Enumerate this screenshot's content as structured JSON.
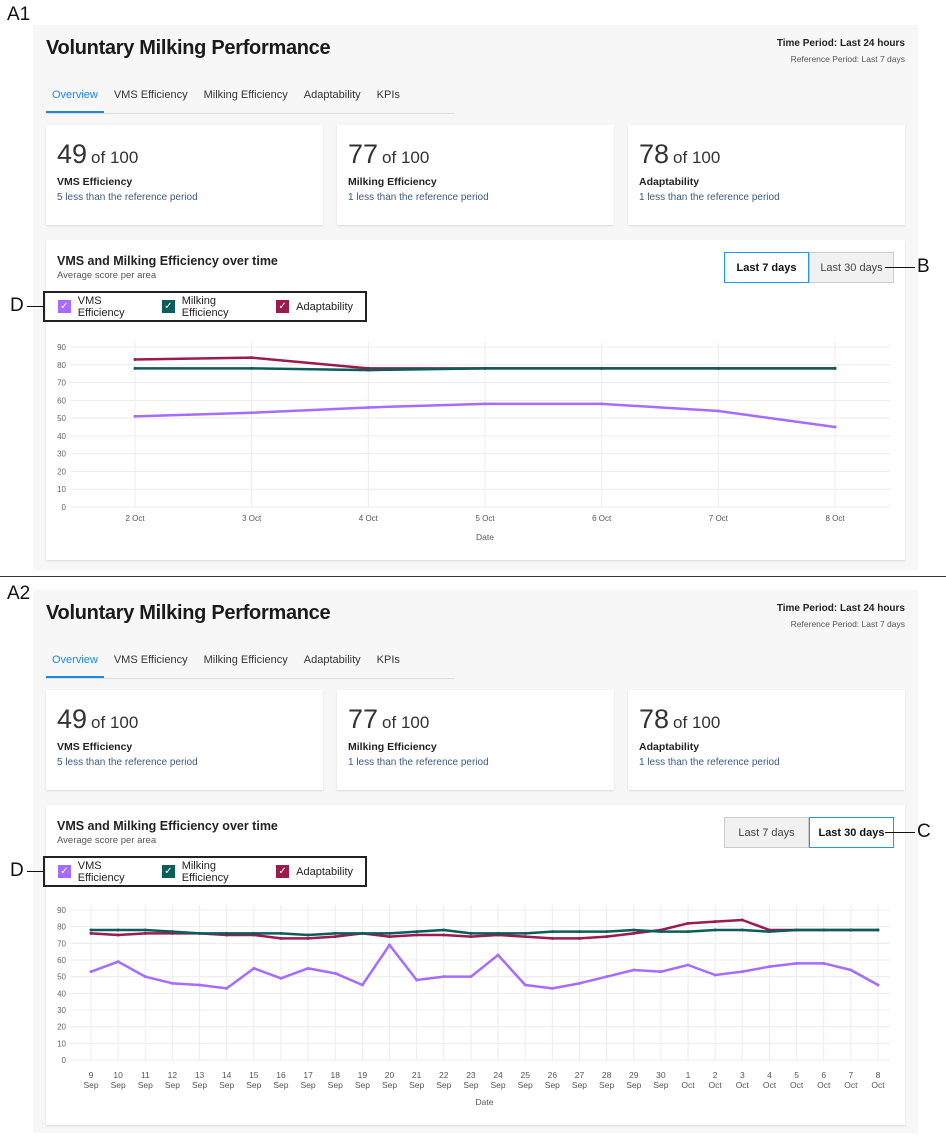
{
  "annotations": {
    "a1": "A1",
    "a2": "A2",
    "b": "B",
    "c": "C",
    "d": "D"
  },
  "panels": [
    {
      "header": {
        "title": "Voluntary Milking Performance",
        "time_period": "Time Period: Last 24 hours",
        "reference_period": "Reference Period: Last 7 days"
      },
      "tabs": [
        {
          "label": "Overview",
          "active": true
        },
        {
          "label": "VMS Efficiency"
        },
        {
          "label": "Milking Efficiency"
        },
        {
          "label": "Adaptability"
        },
        {
          "label": "KPIs"
        }
      ],
      "cards": [
        {
          "score": "49",
          "of": "of 100",
          "metric": "VMS Efficiency",
          "delta": "5 less than the reference period"
        },
        {
          "score": "77",
          "of": "of 100",
          "metric": "Milking Efficiency",
          "delta": "1 less than the reference period"
        },
        {
          "score": "78",
          "of": "of 100",
          "metric": "Adaptability",
          "delta": "1 less than the reference period"
        }
      ],
      "chart": {
        "title": "VMS and Milking Efficiency over time",
        "subtitle": "Average score per area",
        "range_buttons": [
          {
            "label": "Last 7 days",
            "active": true
          },
          {
            "label": "Last 30 days",
            "active": false
          }
        ],
        "legend": [
          {
            "label": "VMS Efficiency",
            "color": "#a66cff"
          },
          {
            "label": "Milking Efficiency",
            "color": "#0b5c5a"
          },
          {
            "label": "Adaptability",
            "color": "#9b1b4e"
          }
        ]
      }
    },
    {
      "header": {
        "title": "Voluntary Milking Performance",
        "time_period": "Time Period: Last 24 hours",
        "reference_period": "Reference Period: Last 7 days"
      },
      "tabs": [
        {
          "label": "Overview",
          "active": true
        },
        {
          "label": "VMS Efficiency"
        },
        {
          "label": "Milking Efficiency"
        },
        {
          "label": "Adaptability"
        },
        {
          "label": "KPIs"
        }
      ],
      "cards": [
        {
          "score": "49",
          "of": "of 100",
          "metric": "VMS Efficiency",
          "delta": "5 less than the reference period"
        },
        {
          "score": "77",
          "of": "of 100",
          "metric": "Milking Efficiency",
          "delta": "1 less than the reference period"
        },
        {
          "score": "78",
          "of": "of 100",
          "metric": "Adaptability",
          "delta": "1 less than the reference period"
        }
      ],
      "chart": {
        "title": "VMS and Milking Efficiency over time",
        "subtitle": "Average score per area",
        "range_buttons": [
          {
            "label": "Last 7 days",
            "active": false
          },
          {
            "label": "Last 30 days",
            "active": true
          }
        ],
        "legend": [
          {
            "label": "VMS Efficiency",
            "color": "#a66cff"
          },
          {
            "label": "Milking Efficiency",
            "color": "#0b5c5a"
          },
          {
            "label": "Adaptability",
            "color": "#9b1b4e"
          }
        ]
      }
    }
  ],
  "chart_data": [
    {
      "type": "line",
      "xlabel": "Date",
      "ylabel": "",
      "ylim": [
        0,
        90
      ],
      "yticks": [
        0,
        10,
        20,
        30,
        40,
        50,
        60,
        70,
        80,
        90
      ],
      "grid": true,
      "legend": "top-left",
      "categories": [
        [
          "2 Oct"
        ],
        [
          "3 Oct"
        ],
        [
          "4 Oct"
        ],
        [
          "5 Oct"
        ],
        [
          "6 Oct"
        ],
        [
          "7 Oct"
        ],
        [
          "8 Oct"
        ]
      ],
      "series": [
        {
          "name": "VMS Efficiency",
          "color": "#a66cff",
          "values": [
            51,
            53,
            56,
            58,
            58,
            54,
            45
          ]
        },
        {
          "name": "Milking Efficiency",
          "color": "#0b5c5a",
          "values": [
            78,
            78,
            77,
            78,
            78,
            78,
            78
          ]
        },
        {
          "name": "Adaptability",
          "color": "#9b1b4e",
          "values": [
            83,
            84,
            78,
            78,
            78,
            78,
            78
          ]
        }
      ]
    },
    {
      "type": "line",
      "xlabel": "Date",
      "ylabel": "",
      "ylim": [
        0,
        90
      ],
      "yticks": [
        0,
        10,
        20,
        30,
        40,
        50,
        60,
        70,
        80,
        90
      ],
      "grid": true,
      "legend": "top-left",
      "categories": [
        [
          "9",
          "Sep"
        ],
        [
          "10",
          "Sep"
        ],
        [
          "11",
          "Sep"
        ],
        [
          "12",
          "Sep"
        ],
        [
          "13",
          "Sep"
        ],
        [
          "14",
          "Sep"
        ],
        [
          "15",
          "Sep"
        ],
        [
          "16",
          "Sep"
        ],
        [
          "17",
          "Sep"
        ],
        [
          "18",
          "Sep"
        ],
        [
          "19",
          "Sep"
        ],
        [
          "20",
          "Sep"
        ],
        [
          "21",
          "Sep"
        ],
        [
          "22",
          "Sep"
        ],
        [
          "23",
          "Sep"
        ],
        [
          "24",
          "Sep"
        ],
        [
          "25",
          "Sep"
        ],
        [
          "26",
          "Sep"
        ],
        [
          "27",
          "Sep"
        ],
        [
          "28",
          "Sep"
        ],
        [
          "29",
          "Sep"
        ],
        [
          "30",
          "Sep"
        ],
        [
          "1",
          "Oct"
        ],
        [
          "2",
          "Oct"
        ],
        [
          "3",
          "Oct"
        ],
        [
          "4",
          "Oct"
        ],
        [
          "5",
          "Oct"
        ],
        [
          "6",
          "Oct"
        ],
        [
          "7",
          "Oct"
        ],
        [
          "8",
          "Oct"
        ]
      ],
      "series": [
        {
          "name": "VMS Efficiency",
          "color": "#a66cff",
          "values": [
            53,
            59,
            50,
            46,
            45,
            43,
            55,
            49,
            55,
            52,
            45,
            69,
            48,
            50,
            50,
            63,
            45,
            43,
            46,
            50,
            54,
            53,
            57,
            51,
            53,
            56,
            58,
            58,
            54,
            45
          ]
        },
        {
          "name": "Milking Efficiency",
          "color": "#0b5c5a",
          "values": [
            78,
            78,
            78,
            77,
            76,
            76,
            76,
            76,
            75,
            76,
            76,
            76,
            77,
            78,
            76,
            76,
            76,
            77,
            77,
            77,
            78,
            77,
            77,
            78,
            78,
            77,
            78,
            78,
            78,
            78
          ]
        },
        {
          "name": "Adaptability",
          "color": "#9b1b4e",
          "values": [
            76,
            75,
            76,
            76,
            76,
            75,
            75,
            73,
            73,
            74,
            76,
            74,
            75,
            75,
            74,
            75,
            74,
            73,
            73,
            74,
            76,
            78,
            82,
            83,
            84,
            78,
            78,
            78,
            78,
            78
          ]
        }
      ]
    }
  ]
}
